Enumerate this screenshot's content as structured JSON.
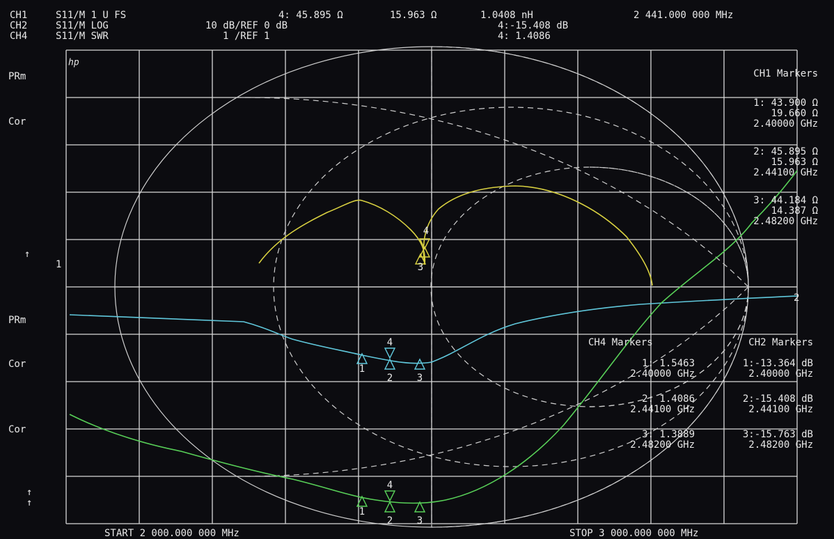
{
  "header": {
    "rows": [
      {
        "channel": "CH1",
        "param": "S11/M 1 U FS",
        "fields": [
          "4: 45.895 Ω",
          "15.963 Ω",
          "1.0408 nH",
          "2 441.000 000 MHz"
        ]
      },
      {
        "channel": "CH2",
        "param": "S11/M LOG",
        "fields": [
          "10 dB/REF 0 dB",
          "4:-15.408 dB"
        ]
      },
      {
        "channel": "CH4",
        "param": "S11/M SWR",
        "fields": [
          "1 /REF 1",
          "4: 1.4086"
        ]
      }
    ]
  },
  "left_labels": [
    "PRm",
    "Cor",
    "↑",
    "1",
    "PRm",
    "Cor",
    "Cor",
    "↑",
    "↑"
  ],
  "logo": "hp",
  "ch1_markers": {
    "title": "CH1 Markers",
    "entries": [
      [
        "1: 43.900 Ω",
        "19.660 Ω",
        "2.40000 GHz"
      ],
      [
        "2: 45.895 Ω",
        "15.963 Ω",
        "2.44100 GHz"
      ],
      [
        "3: 44.184 Ω",
        "14.387 Ω",
        "2.48200 GHz"
      ]
    ]
  },
  "ch4_markers": {
    "title": "CH4 Markers",
    "entries": [
      [
        "1: 1.5463",
        "2.40000 GHz"
      ],
      [
        "2: 1.4086",
        "2.44100 GHz"
      ],
      [
        "3: 1.3889",
        "2.48200 GHz"
      ]
    ]
  },
  "ch2_markers": {
    "title": "CH2 Markers",
    "entries": [
      [
        "1:-13.364 dB",
        "2.40000 GHz"
      ],
      [
        "2:-15.408 dB",
        "2.44100 GHz"
      ],
      [
        "3:-15.763 dB",
        "2.48200 GHz"
      ]
    ]
  },
  "trace_marker_labels": [
    "1",
    "2",
    "3",
    "4"
  ],
  "trace_end_label": "2",
  "footer": {
    "start": "START 2 000.000 000 MHz",
    "stop": "STOP 3 000.000 000 MHz"
  }
}
